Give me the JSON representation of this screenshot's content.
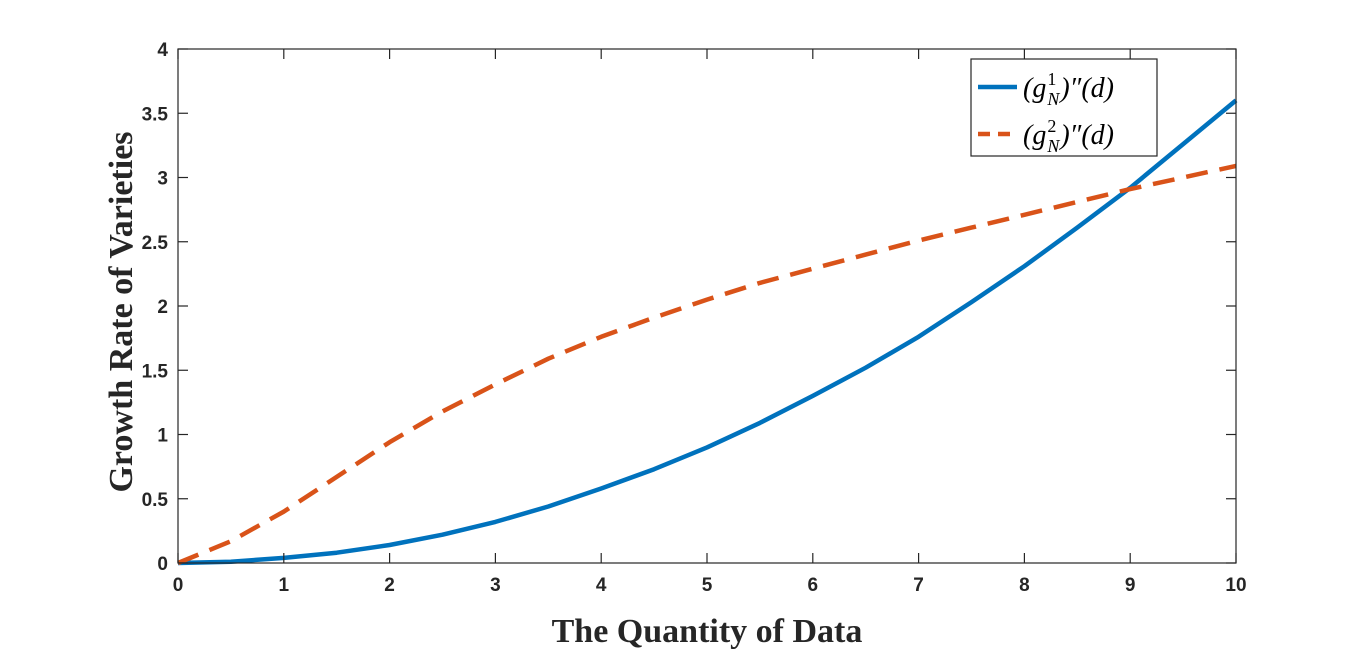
{
  "chart_data": {
    "type": "line",
    "xlabel": "The Quantity of Data",
    "ylabel": "Growth Rate of Varieties",
    "xlim": [
      0,
      10
    ],
    "ylim": [
      0,
      4
    ],
    "xticks": [
      "0",
      "1",
      "2",
      "3",
      "4",
      "5",
      "6",
      "7",
      "8",
      "9",
      "10"
    ],
    "yticks": [
      "0",
      "0.5",
      "1",
      "1.5",
      "2",
      "2.5",
      "3",
      "3.5",
      "4"
    ],
    "x": [
      0,
      0.5,
      1,
      1.5,
      2,
      2.5,
      3,
      3.5,
      4,
      4.5,
      5,
      5.5,
      6,
      6.5,
      7,
      7.5,
      8,
      8.5,
      9,
      9.5,
      10
    ],
    "series": [
      {
        "name_prefix": "(g",
        "name_sup": "1",
        "name_sub": "N",
        "name_suffix": ")″(d)",
        "color": "#0072BD",
        "dash": "solid",
        "values": [
          0,
          0.01,
          0.04,
          0.08,
          0.14,
          0.22,
          0.32,
          0.44,
          0.58,
          0.73,
          0.9,
          1.09,
          1.3,
          1.52,
          1.76,
          2.03,
          2.31,
          2.61,
          2.92,
          3.26,
          3.6
        ]
      },
      {
        "name_prefix": "(g",
        "name_sup": "2",
        "name_sub": "N",
        "name_suffix": ")″(d)",
        "color": "#D95319",
        "dash": "dashed",
        "values": [
          0,
          0.17,
          0.4,
          0.67,
          0.94,
          1.18,
          1.39,
          1.59,
          1.76,
          1.91,
          2.05,
          2.18,
          2.29,
          2.4,
          2.51,
          2.61,
          2.71,
          2.81,
          2.91,
          3.0,
          3.09
        ]
      }
    ],
    "legend_position": "top-right",
    "grid": false
  }
}
